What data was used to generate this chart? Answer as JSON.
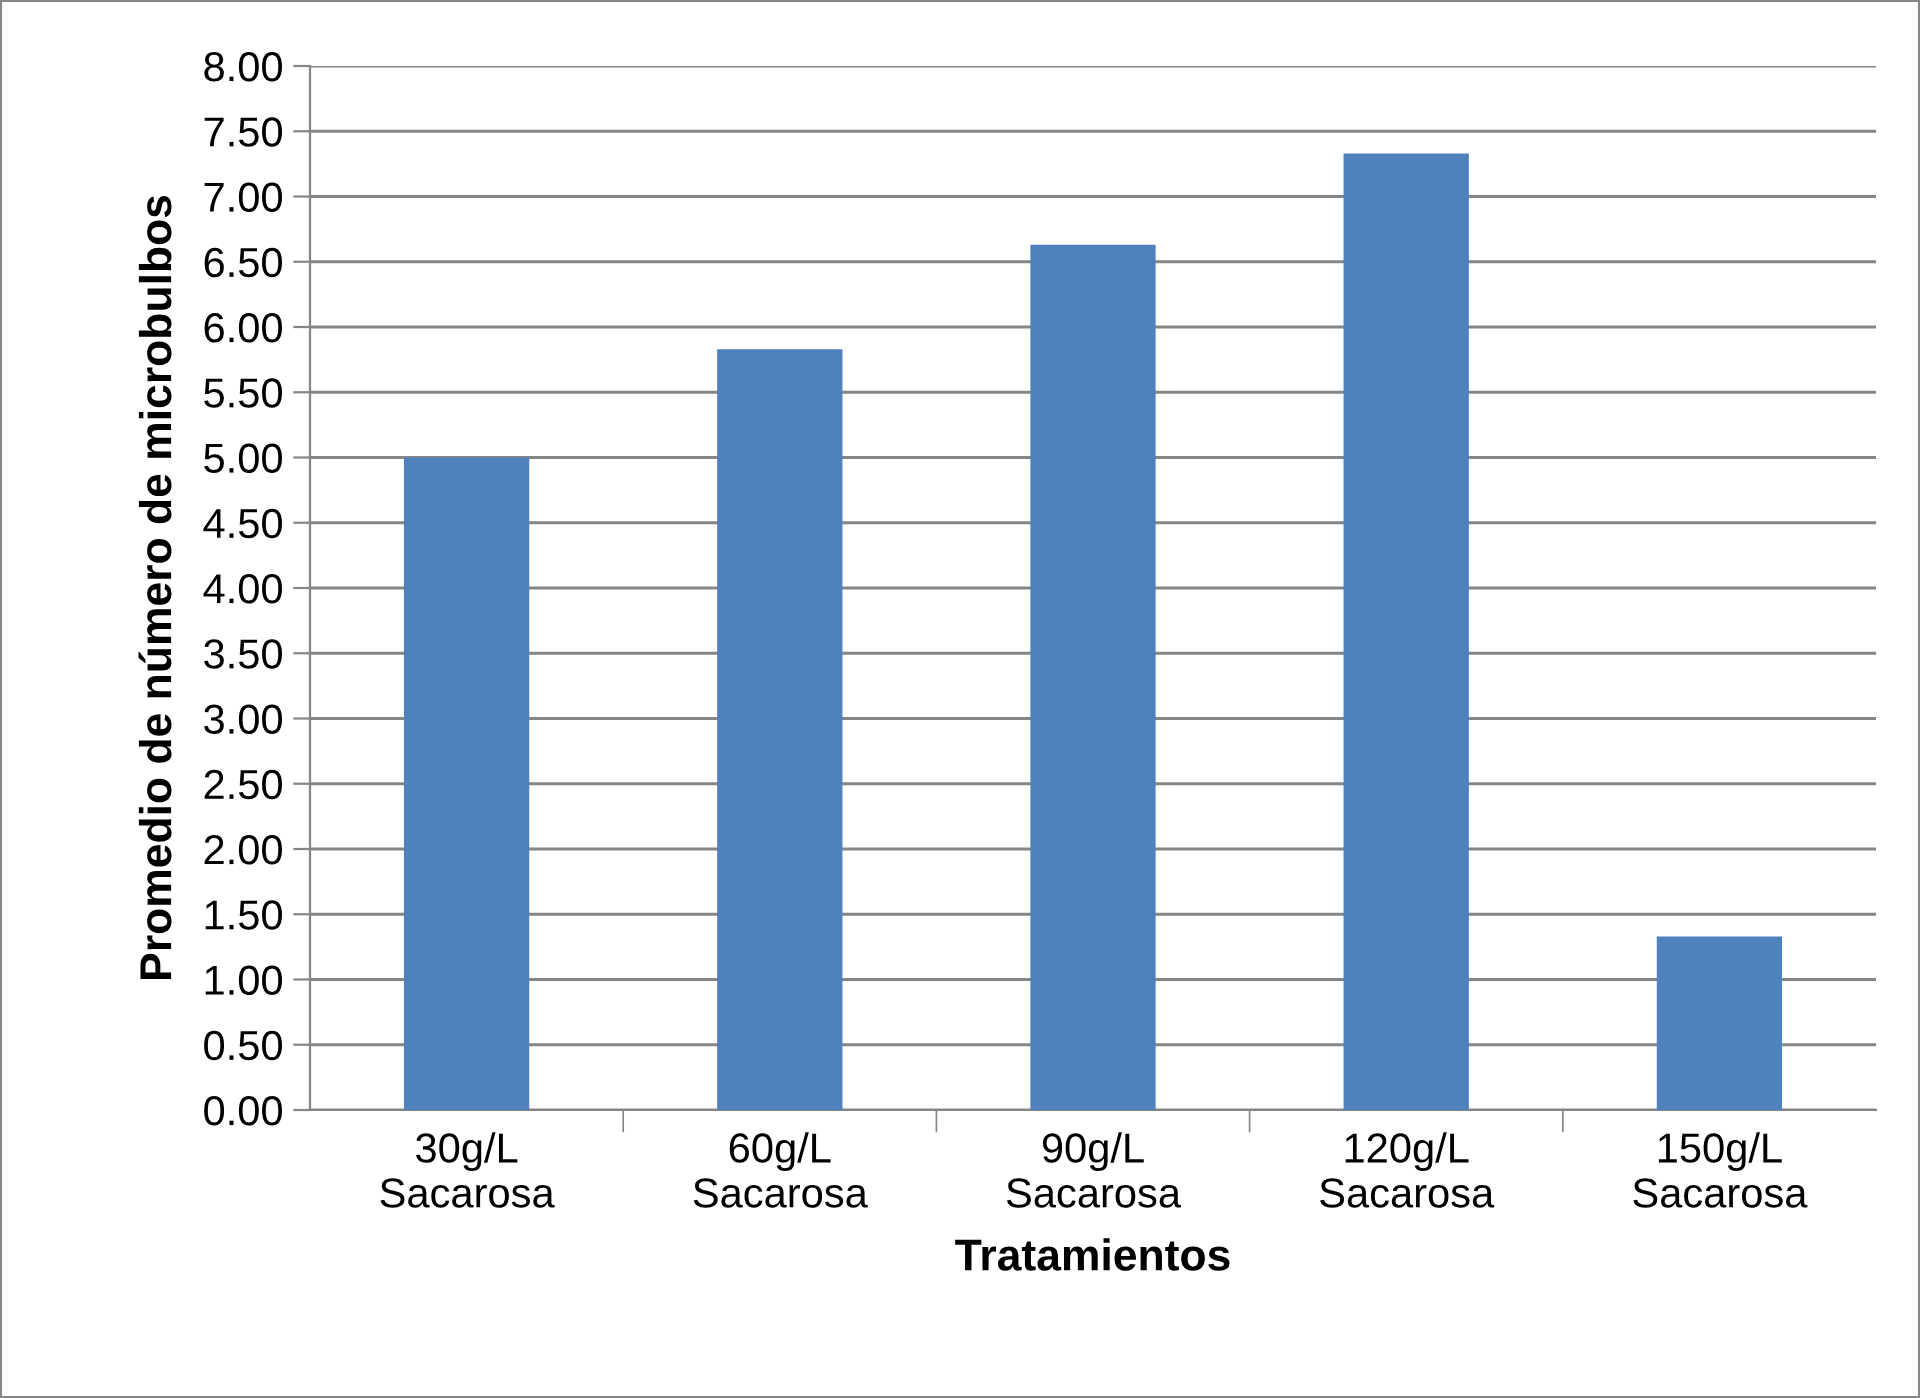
{
  "chart_data": {
    "type": "bar",
    "xlabel": "Tratamientos",
    "ylabel": "Promedio de número de microbulbos",
    "categories": [
      "30g/L\nSacarosa",
      "60g/L\nSacarosa",
      "90g/L\nSacarosa",
      "120g/L\nSacarosa",
      "150g/L\nSacarosa"
    ],
    "values": [
      5.0,
      5.83,
      6.63,
      7.33,
      1.33
    ],
    "color": "#4f81bd",
    "ylim": [
      0,
      8
    ],
    "yticks": [
      {
        "value": 0,
        "label": "0.00"
      },
      {
        "value": 0.5,
        "label": "0.50"
      },
      {
        "value": 1,
        "label": "1.00"
      },
      {
        "value": 1.5,
        "label": "1.50"
      },
      {
        "value": 2,
        "label": "2.00"
      },
      {
        "value": 2.5,
        "label": "2.50"
      },
      {
        "value": 3,
        "label": "3.00"
      },
      {
        "value": 3.5,
        "label": "3.50"
      },
      {
        "value": 4,
        "label": "4.00"
      },
      {
        "value": 4.5,
        "label": "4.50"
      },
      {
        "value": 5,
        "label": "5.00"
      },
      {
        "value": 5.5,
        "label": "5.50"
      },
      {
        "value": 6,
        "label": "6.00"
      },
      {
        "value": 6.5,
        "label": "6.50"
      },
      {
        "value": 7,
        "label": "7.00"
      },
      {
        "value": 7.5,
        "label": "7.50"
      },
      {
        "value": 8,
        "label": "8.00"
      }
    ],
    "grid": "y",
    "legend": false
  }
}
